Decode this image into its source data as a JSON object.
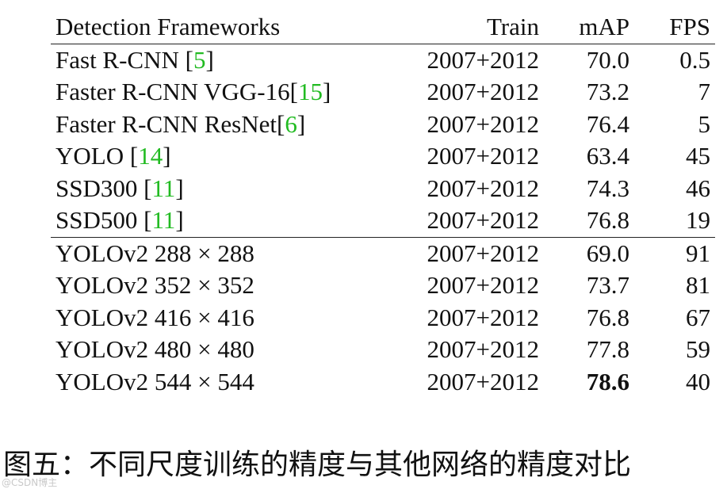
{
  "table": {
    "headers": {
      "framework": "Detection Frameworks",
      "train": "Train",
      "map": "mAP",
      "fps": "FPS"
    },
    "group1": [
      {
        "name": "Fast R-CNN ",
        "ref": "5",
        "ref_close": "]",
        "ref_open": "[",
        "train": "2007+2012",
        "map": "70.0",
        "fps": "0.5"
      },
      {
        "name": "Faster R-CNN VGG-16",
        "ref_open": "[",
        "ref": "15",
        "ref_close": "]",
        "train": "2007+2012",
        "map": "73.2",
        "fps": "7"
      },
      {
        "name": "Faster R-CNN ResNet",
        "ref_open": "[",
        "ref": "6",
        "ref_close": "]",
        "train": "2007+2012",
        "map": "76.4",
        "fps": "5"
      },
      {
        "name": "YOLO ",
        "ref_open": "[",
        "ref": "14",
        "ref_close": "]",
        "train": "2007+2012",
        "map": "63.4",
        "fps": "45"
      },
      {
        "name": "SSD300 ",
        "ref_open": "[",
        "ref": "11",
        "ref_close": "]",
        "train": "2007+2012",
        "map": "74.3",
        "fps": "46"
      },
      {
        "name": "SSD500 ",
        "ref_open": "[",
        "ref": "11",
        "ref_close": "]",
        "train": "2007+2012",
        "map": "76.8",
        "fps": "19"
      }
    ],
    "group2": [
      {
        "name": "YOLOv2 288 × 288",
        "train": "2007+2012",
        "map": "69.0",
        "fps": "91"
      },
      {
        "name": "YOLOv2 352 × 352",
        "train": "2007+2012",
        "map": "73.7",
        "fps": "81"
      },
      {
        "name": "YOLOv2 416 × 416",
        "train": "2007+2012",
        "map": "76.8",
        "fps": "67"
      },
      {
        "name": "YOLOv2 480 × 480",
        "train": "2007+2012",
        "map": "77.8",
        "fps": "59"
      },
      {
        "name": "YOLOv2 544 × 544",
        "train": "2007+2012",
        "map": "78.6",
        "fps": "40"
      }
    ],
    "best_map_row": "group2.4",
    "ref_color": "#22bb22"
  },
  "caption": "图五：不同尺度训练的精度与其他网络的精度对比",
  "watermark": "@CSDN博主"
}
